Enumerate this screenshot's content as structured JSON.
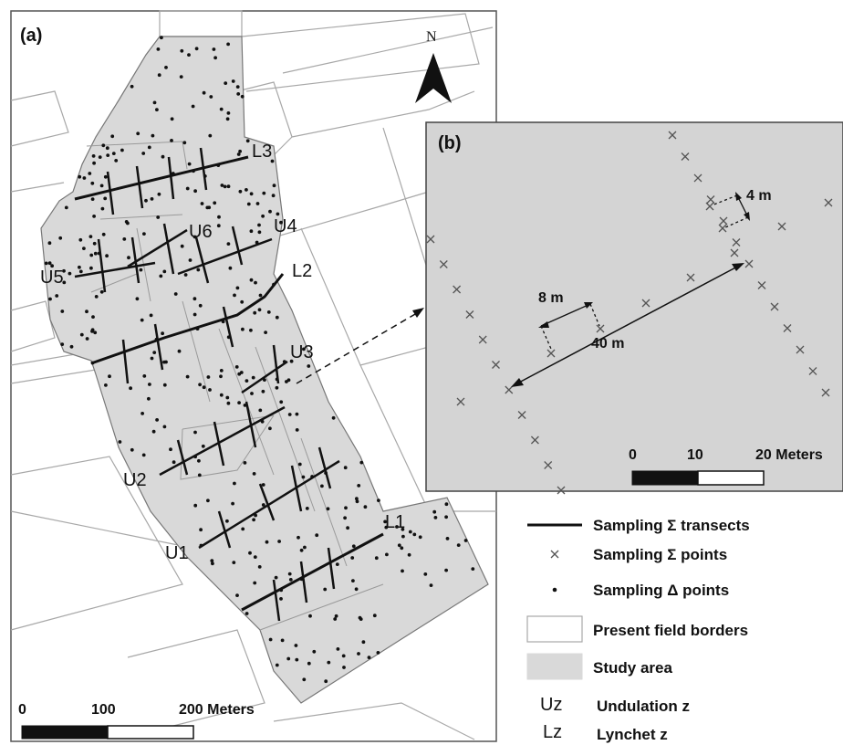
{
  "panel_a": {
    "label": "(a)",
    "north_label": "N",
    "scale": {
      "ticks": [
        "0",
        "100",
        "200 Meters"
      ]
    },
    "transect_labels": {
      "L1": "L1",
      "L2": "L2",
      "L3": "L3",
      "U1": "U1",
      "U2": "U2",
      "U3": "U3",
      "U4": "U4",
      "U5": "U5",
      "U6": "U6"
    }
  },
  "panel_b": {
    "label": "(b)",
    "dim_4": "4 m",
    "dim_8": "8 m",
    "dim_40": "40 m",
    "scale": {
      "ticks": [
        "0",
        "10",
        "20 Meters"
      ]
    }
  },
  "legend": {
    "items": [
      {
        "symbol": "line",
        "label": "Sampling Σ transects"
      },
      {
        "symbol": "cross",
        "label": "Sampling Σ points"
      },
      {
        "symbol": "dot",
        "label": "Sampling Δ points"
      },
      {
        "symbol": "white-box",
        "label": "Present field borders"
      },
      {
        "symbol": "grey-box",
        "label": "Study area"
      },
      {
        "symbol": "Uz",
        "label": "Undulation z"
      },
      {
        "symbol": "Lz",
        "label": "Lynchet z"
      }
    ]
  },
  "colors": {
    "study_area": "#d9d9d9",
    "inset_background": "#d4d4d4",
    "field_border": "#a8a8a8",
    "line": "#111111"
  }
}
